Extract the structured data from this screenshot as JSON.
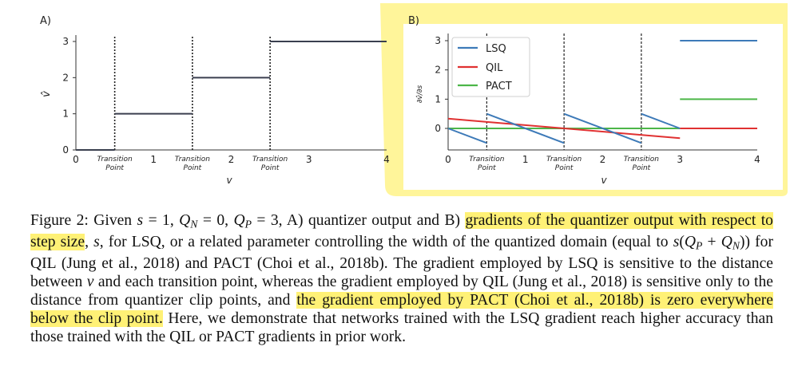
{
  "figure": {
    "highlight_color": "#fff176",
    "panel_a": {
      "label": "A)",
      "xlabel": "v",
      "ylabel": "v̂",
      "x_ticks": [
        "0",
        "1",
        "2",
        "3",
        "4"
      ],
      "y_ticks": [
        "0",
        "1",
        "2",
        "3"
      ],
      "transition_label": [
        "Transition",
        "Point"
      ],
      "transitions": [
        0.5,
        1.5,
        2.5
      ],
      "xlim": [
        0,
        4
      ],
      "ylim": [
        0,
        3
      ],
      "line_color": "#3a3f4f",
      "steps": [
        {
          "x0": 0,
          "x1": 0.5,
          "y": 0
        },
        {
          "x0": 0.5,
          "x1": 1.5,
          "y": 1
        },
        {
          "x0": 1.5,
          "x1": 2.5,
          "y": 2
        },
        {
          "x0": 2.5,
          "x1": 4,
          "y": 3
        }
      ]
    },
    "panel_b": {
      "label": "B)",
      "xlabel": "v",
      "ylabel": "∂v̂/∂s",
      "x_ticks": [
        "0",
        "1",
        "2",
        "3",
        "4"
      ],
      "y_ticks": [
        "0",
        "1",
        "2",
        "3"
      ],
      "transition_label": [
        "Transition",
        "Point"
      ],
      "transitions": [
        0.5,
        1.5,
        2.5
      ],
      "xlim": [
        0,
        4
      ],
      "ylim": [
        -0.4,
        3.2
      ],
      "legend": [
        "LSQ",
        "QIL",
        "PACT"
      ],
      "colors": {
        "LSQ": "#3d7ab8",
        "QIL": "#e03131",
        "PACT": "#4cb648"
      },
      "series": {
        "LSQ": [
          [
            [
              0,
              0
            ],
            [
              0.5,
              -0.5
            ]
          ],
          [
            [
              0.5,
              0.5
            ],
            [
              1.5,
              -0.5
            ]
          ],
          [
            [
              1.5,
              0.5
            ],
            [
              2.5,
              -0.5
            ]
          ],
          [
            [
              2.5,
              0.5
            ],
            [
              3,
              0
            ]
          ],
          [
            [
              3,
              3
            ],
            [
              4,
              3
            ]
          ]
        ],
        "QIL": [
          [
            [
              0,
              0.333
            ],
            [
              3,
              -0.333
            ]
          ],
          [
            [
              3,
              0
            ],
            [
              4,
              0
            ]
          ]
        ],
        "PACT": [
          [
            [
              0,
              0
            ],
            [
              3,
              0
            ]
          ],
          [
            [
              3,
              1
            ],
            [
              4,
              1
            ]
          ]
        ]
      }
    }
  },
  "caption": {
    "p1": "Figure 2: Given ",
    "s": "s",
    "eq1": " = 1, ",
    "Q": "Q",
    "N": "N",
    "eq2": " = 0, ",
    "P": "P",
    "eq3": " = 3, A) quantizer output and B) ",
    "hl1": "gradients of the quantizer output with respect to step size",
    "p2": ", ",
    "p3": ", for LSQ, or a related parameter controlling the width of the quantized domain (equal to ",
    "p4": "(",
    "p5": " + ",
    "p6": ")) for QIL (Jung et al., 2018) and PACT (Choi et al., 2018b). The gradient employed by LSQ is sensitive to the distance between ",
    "v": "v",
    "p7": " and each transition point, whereas the gradient employed by QIL (Jung et al., 2018) is sensitive only to the distance from quantizer clip points, and ",
    "hl2": "the gradient employed by PACT (Choi et al., 2018b) is zero everywhere below the clip point.",
    "p8": " Here, we demonstrate that networks trained with the LSQ gradient reach higher accuracy than those trained with the QIL or PACT gradients in prior work."
  }
}
